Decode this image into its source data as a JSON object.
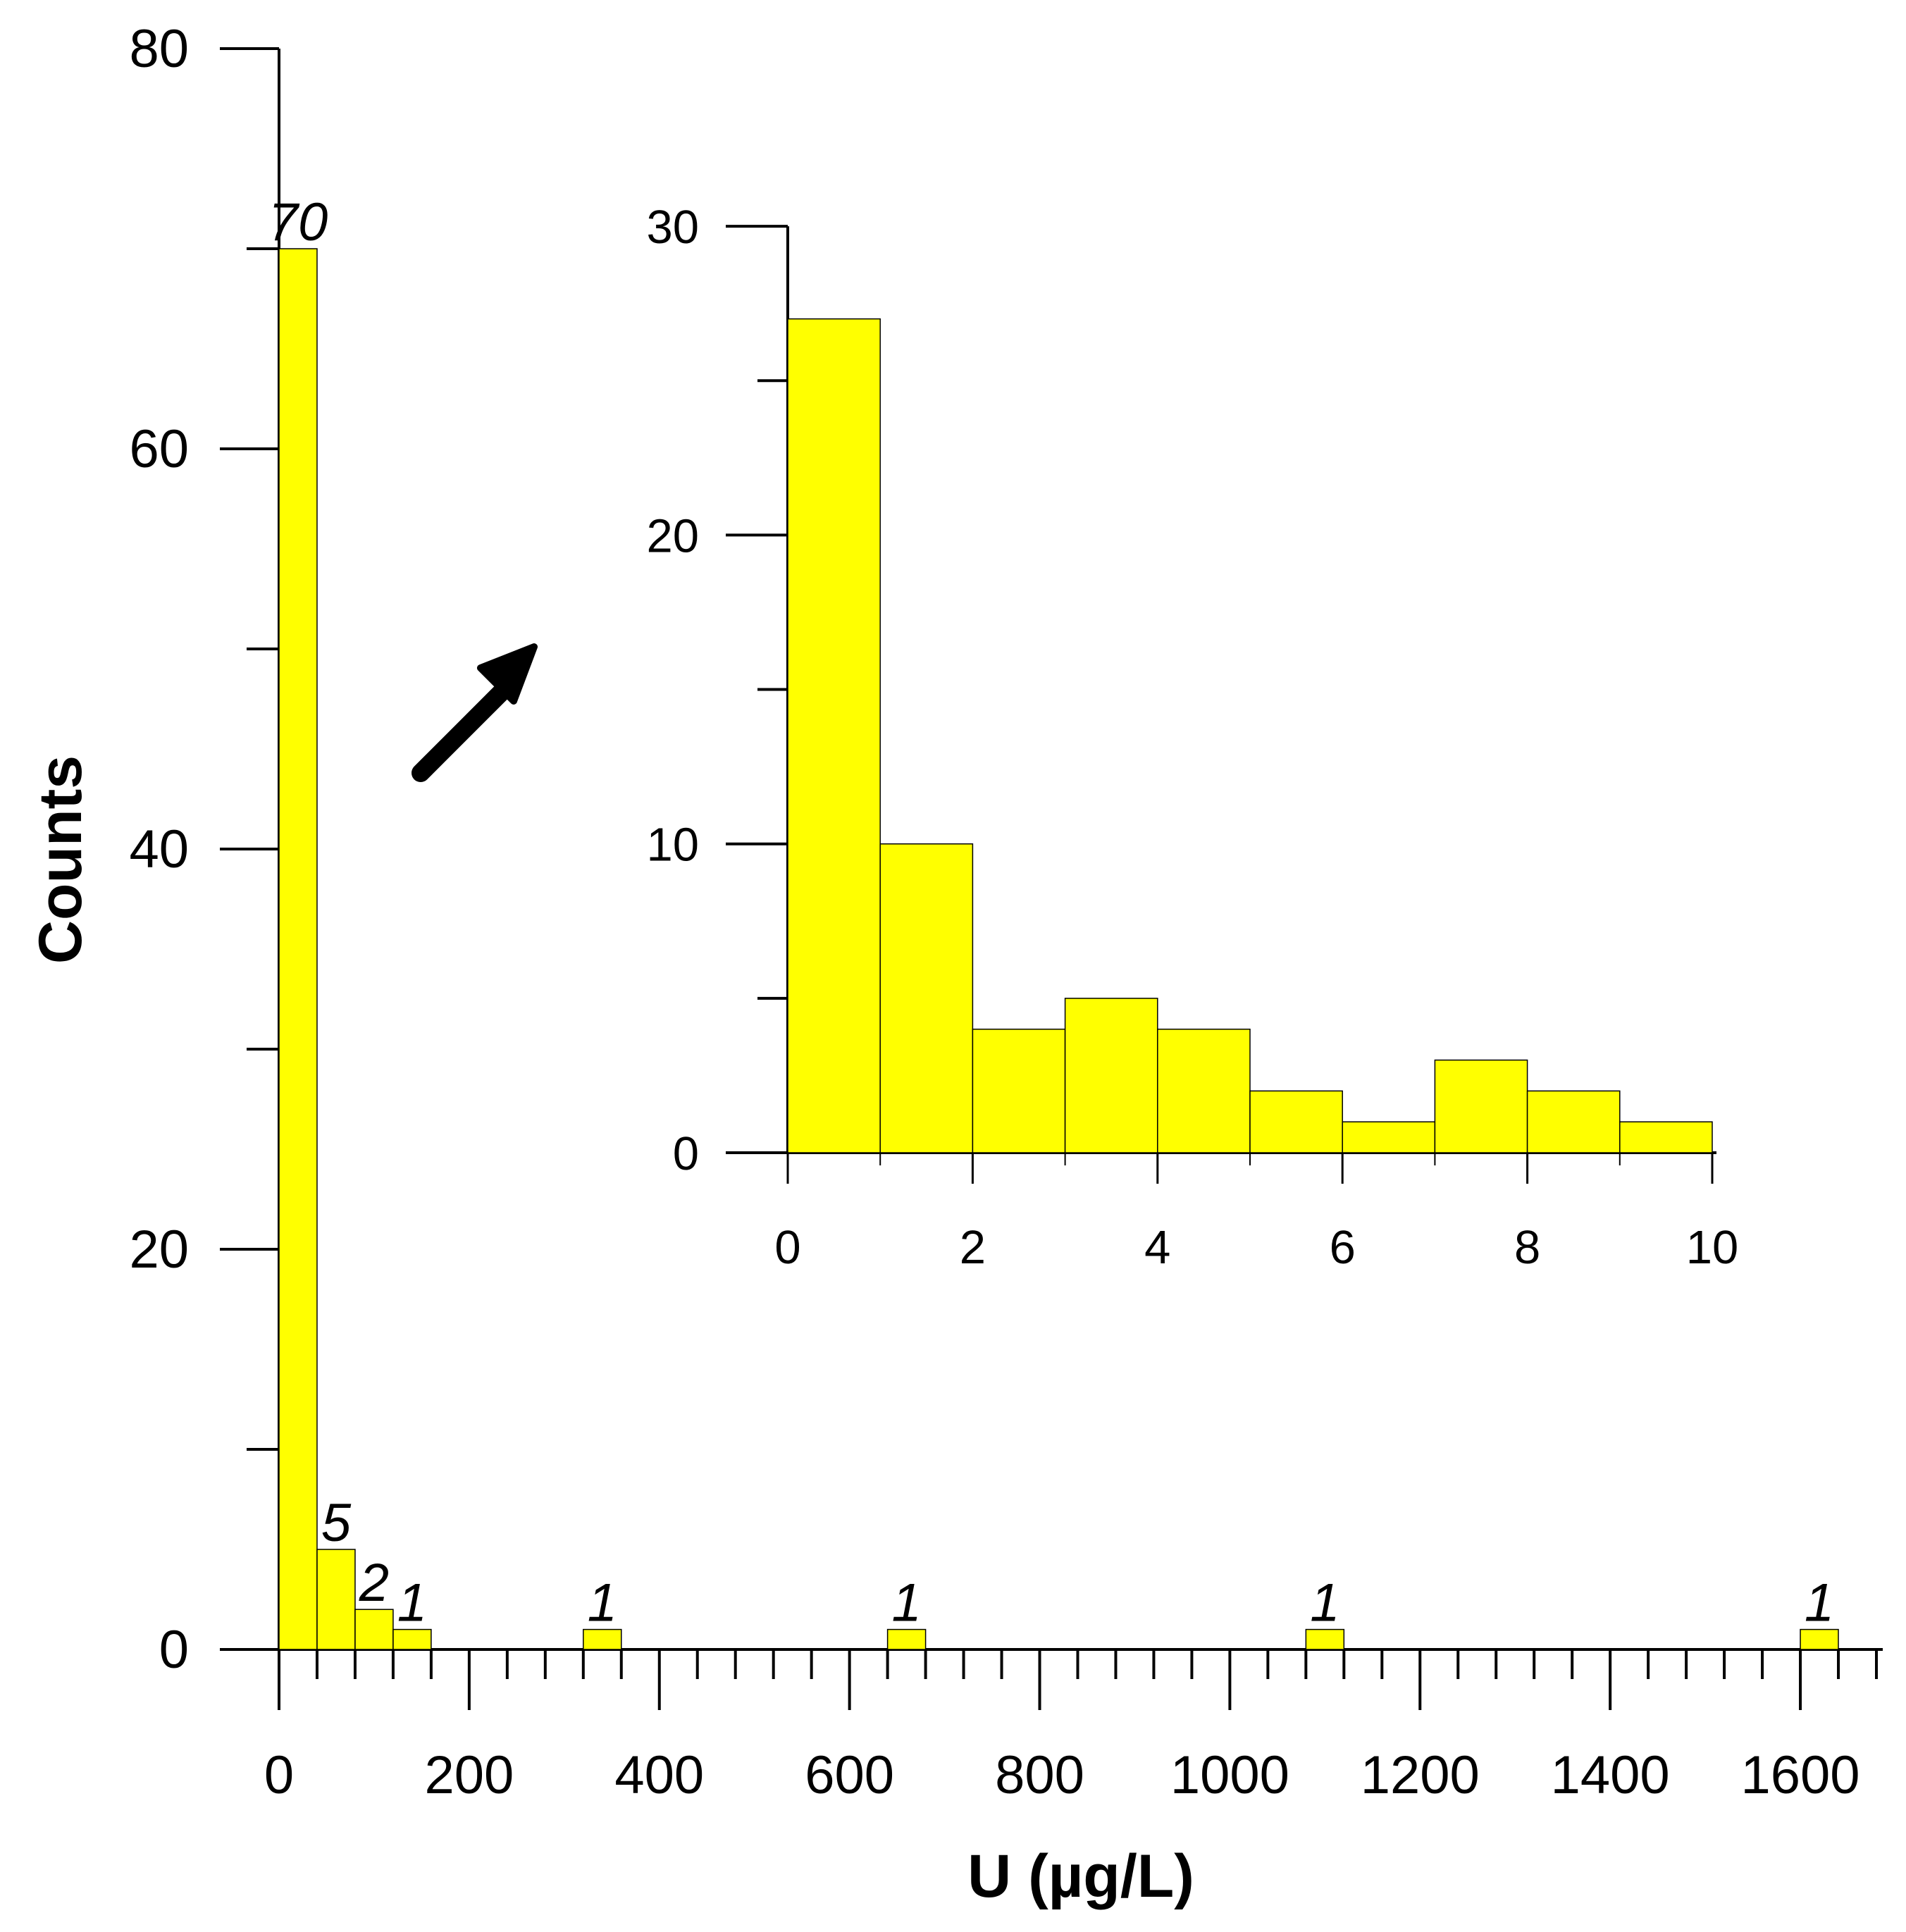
{
  "colors": {
    "bar_fill": "#ffff00",
    "bar_stroke": "#000000",
    "axis": "#000000"
  },
  "chart_data": [
    {
      "type": "bar",
      "title": "",
      "xlabel": "U (µg/L)",
      "ylabel": "Counts",
      "xlim": [
        0,
        1700
      ],
      "ylim": [
        0,
        80
      ],
      "x_ticks": [
        "0",
        "200",
        "400",
        "600",
        "800",
        "1000",
        "1200",
        "1400",
        "1600"
      ],
      "y_ticks": [
        "0",
        "20",
        "40",
        "60",
        "80"
      ],
      "bin_width": 40,
      "bars": [
        {
          "x0": 0,
          "x1": 40,
          "value": 70,
          "label": "70"
        },
        {
          "x0": 40,
          "x1": 80,
          "value": 5,
          "label": "5"
        },
        {
          "x0": 80,
          "x1": 120,
          "value": 2,
          "label": "2"
        },
        {
          "x0": 120,
          "x1": 160,
          "value": 1,
          "label": "1"
        },
        {
          "x0": 320,
          "x1": 360,
          "value": 1,
          "label": "1"
        },
        {
          "x0": 640,
          "x1": 680,
          "value": 1,
          "label": "1"
        },
        {
          "x0": 1080,
          "x1": 1120,
          "value": 1,
          "label": "1"
        },
        {
          "x0": 1600,
          "x1": 1640,
          "value": 1,
          "label": "1"
        }
      ],
      "grid": false
    },
    {
      "type": "bar",
      "title": "",
      "xlabel": "",
      "ylabel": "",
      "xlim": [
        0,
        10
      ],
      "ylim": [
        0,
        30
      ],
      "x_ticks": [
        "0",
        "2",
        "4",
        "6",
        "8",
        "10"
      ],
      "y_ticks": [
        "0",
        "10",
        "20",
        "30"
      ],
      "bars": [
        {
          "x0": 0,
          "x1": 1,
          "value": 27
        },
        {
          "x0": 1,
          "x1": 2,
          "value": 10
        },
        {
          "x0": 2,
          "x1": 3,
          "value": 4
        },
        {
          "x0": 3,
          "x1": 4,
          "value": 5
        },
        {
          "x0": 4,
          "x1": 5,
          "value": 4
        },
        {
          "x0": 5,
          "x1": 6,
          "value": 2
        },
        {
          "x0": 6,
          "x1": 7,
          "value": 1
        },
        {
          "x0": 7,
          "x1": 8,
          "value": 3
        },
        {
          "x0": 8,
          "x1": 9,
          "value": 2
        },
        {
          "x0": 9,
          "x1": 10,
          "value": 1
        }
      ],
      "grid": false
    }
  ]
}
